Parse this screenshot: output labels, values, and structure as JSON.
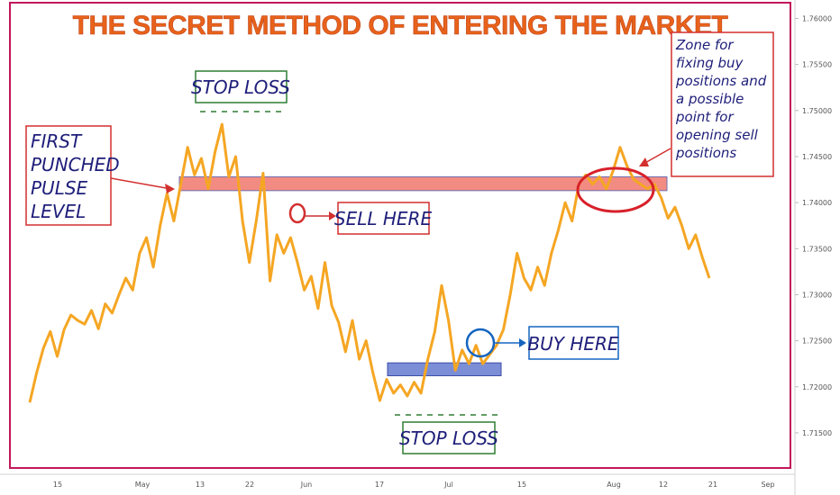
{
  "colors": {
    "frame": "#c2185b",
    "price_line": "#f5a623",
    "sell_zone": "#f28b82",
    "buy_zone": "#7b8ed6",
    "annotation_red": "#d32f2f",
    "annotation_green": "#2e7d32",
    "annotation_blue": "#1565c0"
  },
  "chart_data": {
    "type": "line",
    "title": "THE SECRET METHOD OF ENTERING THE MARKET",
    "x_tick_labels": [
      "15",
      "May",
      "13",
      "22",
      "Jun",
      "17",
      "Jul",
      "15",
      "Aug",
      "12",
      "21",
      "Sep"
    ],
    "y_tick_labels": [
      "1.76000",
      "1.75500",
      "1.75000",
      "1.74500",
      "1.74000",
      "1.73500",
      "1.73000",
      "1.72500",
      "1.72000",
      "1.71500"
    ],
    "ylim": [
      1.7105,
      1.762
    ],
    "grid": false,
    "series": [
      {
        "values": [
          1.7183,
          1.7215,
          1.7242,
          1.726,
          1.7233,
          1.7262,
          1.7278,
          1.7272,
          1.7268,
          1.7283,
          1.7263,
          1.729,
          1.728,
          1.73,
          1.7318,
          1.7305,
          1.7345,
          1.7362,
          1.733,
          1.7375,
          1.741,
          1.738,
          1.742,
          1.746,
          1.743,
          1.7448,
          1.7415,
          1.7455,
          1.7485,
          1.7428,
          1.745,
          1.738,
          1.7335,
          1.738,
          1.7432,
          1.7315,
          1.7365,
          1.7345,
          1.7362,
          1.7335,
          1.7305,
          1.732,
          1.7285,
          1.7335,
          1.7288,
          1.727,
          1.7238,
          1.7272,
          1.723,
          1.725,
          1.7215,
          1.7185,
          1.7208,
          1.7193,
          1.7202,
          1.719,
          1.7205,
          1.7193,
          1.723,
          1.726,
          1.731,
          1.7272,
          1.7218,
          1.724,
          1.7225,
          1.7245,
          1.7225,
          1.7235,
          1.7245,
          1.7262,
          1.73,
          1.7345,
          1.7318,
          1.7305,
          1.733,
          1.731,
          1.7345,
          1.737,
          1.74,
          1.738,
          1.742,
          1.743,
          1.742,
          1.7428,
          1.7415,
          1.7435,
          1.746,
          1.744,
          1.7425,
          1.742,
          1.7415,
          1.742,
          1.7405,
          1.7383,
          1.7395,
          1.7375,
          1.735,
          1.7365,
          1.734,
          1.7318
        ]
      }
    ],
    "annotations": {
      "stop_loss_top": "STOP LOSS",
      "stop_loss_bottom": "STOP LOSS",
      "first_level": [
        "FIRST",
        "PUNCHED",
        "PULSE",
        "LEVEL"
      ],
      "sell_here": "SELL HERE",
      "buy_here": "BUY HERE",
      "zone_note": [
        "Zone for",
        "fixing buy",
        "positions and",
        "a possible",
        "point for",
        "opening sell",
        "positions"
      ]
    },
    "zones": {
      "sell": [
        1.7413,
        1.7428
      ],
      "buy": [
        1.7212,
        1.7226
      ]
    }
  }
}
